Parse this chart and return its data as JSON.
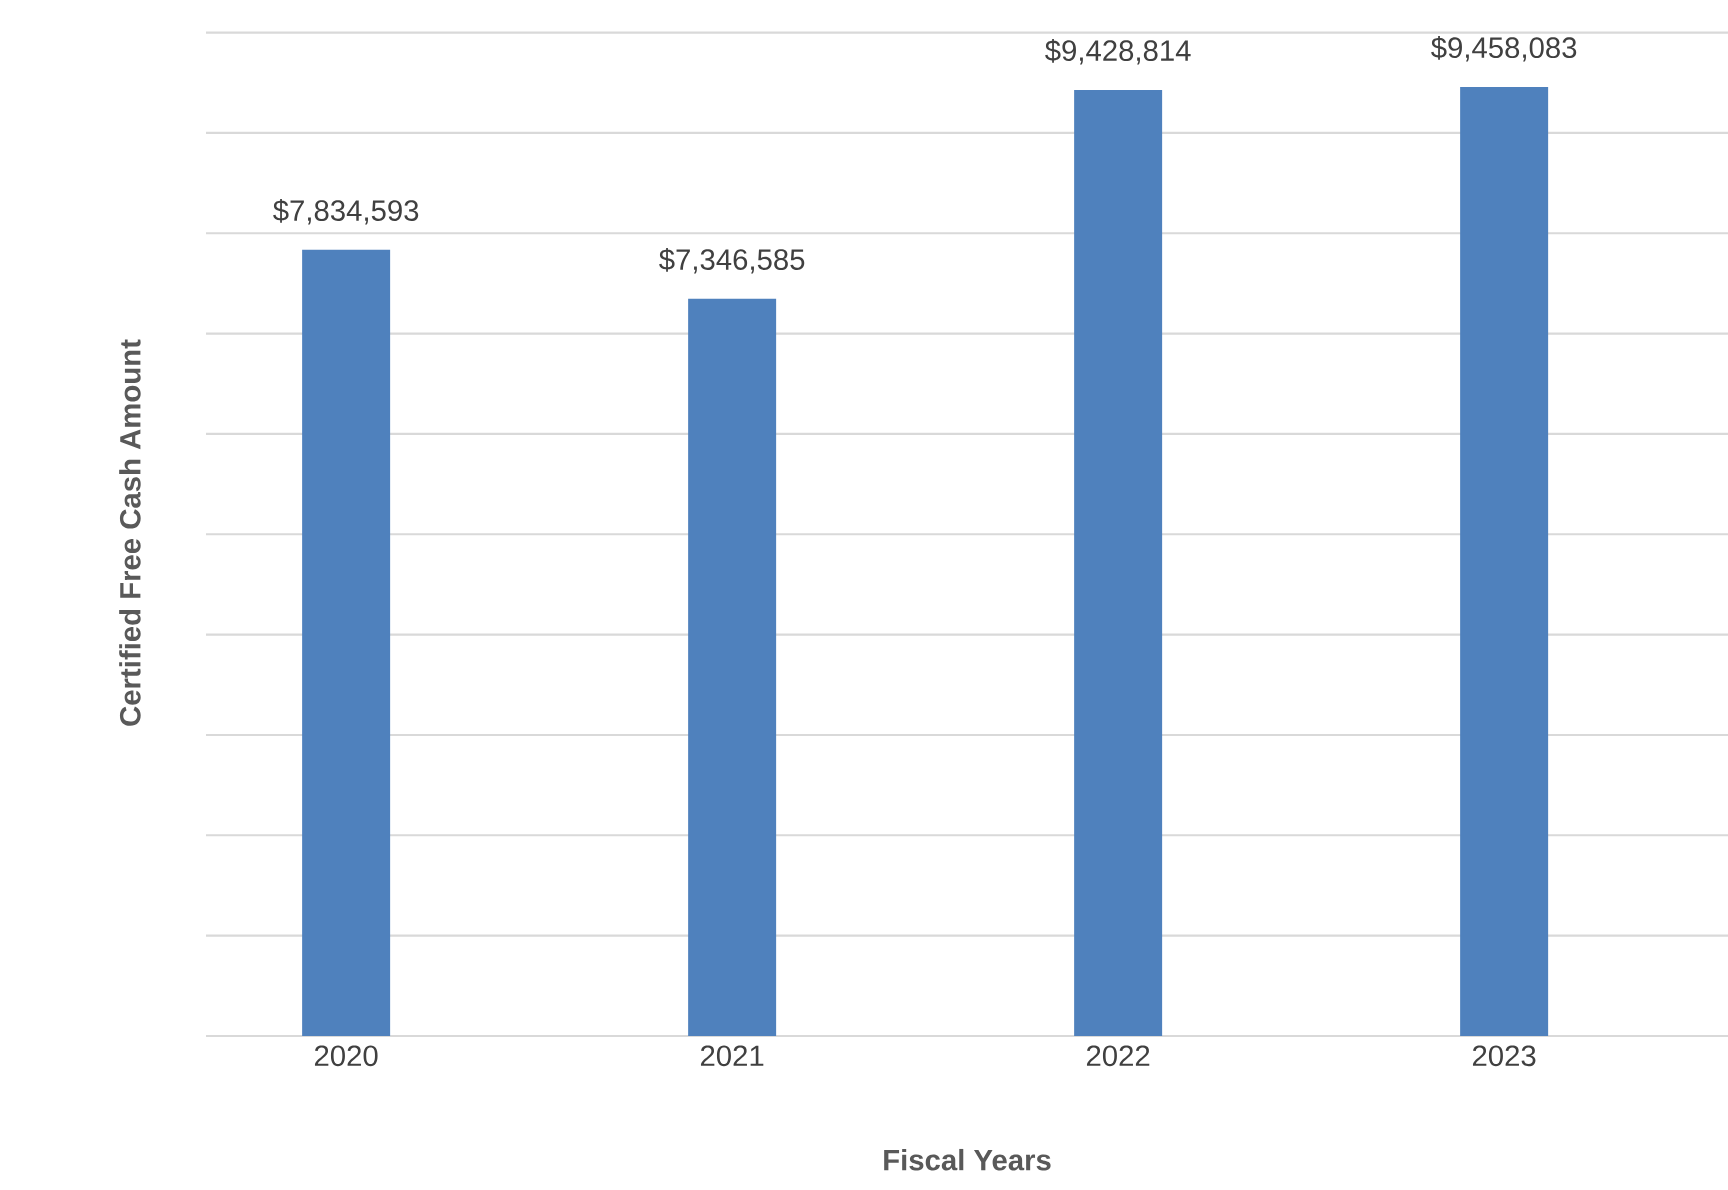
{
  "chart_data": {
    "type": "bar",
    "xlabel": "Fiscal Years",
    "ylabel": "Certified Free Cash Amount",
    "categories": [
      "2020",
      "2021",
      "2022",
      "2023"
    ],
    "values": [
      7834593,
      7346585,
      9428814,
      9458083
    ],
    "value_labels": [
      "$7,834,593",
      "$7,346,585",
      "$9,428,814",
      "$9,458,083"
    ],
    "color": "#4f81bd",
    "grid": "y",
    "tick_labels": "x"
  }
}
